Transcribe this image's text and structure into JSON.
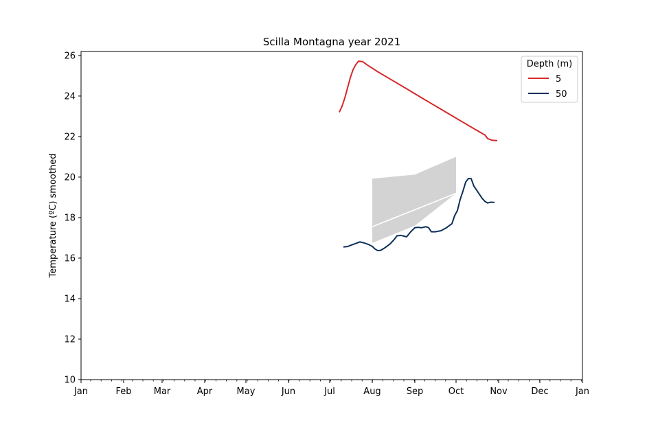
{
  "chart_data": {
    "type": "line",
    "title": "Scilla Montagna year 2021",
    "xlabel": "",
    "ylabel": "Temperature (ºC) smoothed",
    "ylim": [
      10,
      26.2
    ],
    "xlim": [
      "2021-01-01",
      "2022-01-01"
    ],
    "yticks": [
      10,
      12,
      14,
      16,
      18,
      20,
      22,
      24,
      26
    ],
    "xtick_labels": [
      "Jan",
      "Feb",
      "Mar",
      "Apr",
      "May",
      "Jun",
      "Jul",
      "Aug",
      "Sep",
      "Oct",
      "Nov",
      "Dec",
      "Jan"
    ],
    "xtick_dates": [
      "2021-01-01",
      "2021-02-01",
      "2021-03-01",
      "2021-04-01",
      "2021-05-01",
      "2021-06-01",
      "2021-07-01",
      "2021-08-01",
      "2021-09-01",
      "2021-10-01",
      "2021-11-01",
      "2021-12-01",
      "2022-01-01"
    ],
    "grid": false,
    "legend": {
      "title": "Depth (m)",
      "placement": "top-right"
    },
    "series": [
      {
        "name": "5",
        "color": "#d62728",
        "points": [
          [
            "2021-07-08",
            23.2
          ],
          [
            "2021-07-10",
            23.5
          ],
          [
            "2021-07-12",
            23.9
          ],
          [
            "2021-07-14",
            24.4
          ],
          [
            "2021-07-16",
            24.9
          ],
          [
            "2021-07-18",
            25.3
          ],
          [
            "2021-07-20",
            25.55
          ],
          [
            "2021-07-22",
            25.72
          ],
          [
            "2021-07-25",
            25.7
          ],
          [
            "2021-07-28",
            25.55
          ],
          [
            "2021-08-05",
            25.2
          ],
          [
            "2021-08-15",
            24.8
          ],
          [
            "2021-08-25",
            24.4
          ],
          [
            "2021-09-05",
            23.95
          ],
          [
            "2021-09-15",
            23.55
          ],
          [
            "2021-09-25",
            23.15
          ],
          [
            "2021-10-05",
            22.75
          ],
          [
            "2021-10-15",
            22.35
          ],
          [
            "2021-10-22",
            22.08
          ],
          [
            "2021-10-24",
            21.9
          ],
          [
            "2021-10-27",
            21.82
          ],
          [
            "2021-10-31",
            21.8
          ]
        ]
      },
      {
        "name": "50",
        "color": "#0b2f5b",
        "points": [
          [
            "2021-07-11",
            16.55
          ],
          [
            "2021-07-14",
            16.57
          ],
          [
            "2021-07-17",
            16.65
          ],
          [
            "2021-07-20",
            16.72
          ],
          [
            "2021-07-23",
            16.8
          ],
          [
            "2021-07-26",
            16.75
          ],
          [
            "2021-07-29",
            16.68
          ],
          [
            "2021-08-01",
            16.58
          ],
          [
            "2021-08-03",
            16.45
          ],
          [
            "2021-08-05",
            16.37
          ],
          [
            "2021-08-07",
            16.38
          ],
          [
            "2021-08-10",
            16.5
          ],
          [
            "2021-08-14",
            16.7
          ],
          [
            "2021-08-17",
            16.92
          ],
          [
            "2021-08-19",
            17.1
          ],
          [
            "2021-08-22",
            17.12
          ],
          [
            "2021-08-26",
            17.05
          ],
          [
            "2021-08-29",
            17.3
          ],
          [
            "2021-09-01",
            17.5
          ],
          [
            "2021-09-03",
            17.52
          ],
          [
            "2021-09-06",
            17.5
          ],
          [
            "2021-09-09",
            17.55
          ],
          [
            "2021-09-11",
            17.5
          ],
          [
            "2021-09-13",
            17.3
          ],
          [
            "2021-09-16",
            17.3
          ],
          [
            "2021-09-20",
            17.35
          ],
          [
            "2021-09-24",
            17.5
          ],
          [
            "2021-09-28",
            17.7
          ],
          [
            "2021-09-30",
            18.1
          ],
          [
            "2021-10-02",
            18.35
          ],
          [
            "2021-10-04",
            18.9
          ],
          [
            "2021-10-06",
            19.3
          ],
          [
            "2021-10-08",
            19.75
          ],
          [
            "2021-10-10",
            19.93
          ],
          [
            "2021-10-12",
            19.92
          ],
          [
            "2021-10-14",
            19.55
          ],
          [
            "2021-10-16",
            19.35
          ],
          [
            "2021-10-18",
            19.15
          ],
          [
            "2021-10-20",
            18.95
          ],
          [
            "2021-10-22",
            18.8
          ],
          [
            "2021-10-24",
            18.72
          ],
          [
            "2021-10-26",
            18.76
          ],
          [
            "2021-10-29",
            18.75
          ]
        ]
      }
    ],
    "bands": [
      {
        "color": "#d3d3d3",
        "upper": [
          [
            "2021-08-01",
            19.92
          ],
          [
            "2021-09-01",
            20.12
          ],
          [
            "2021-10-01",
            21.0
          ]
        ],
        "lower": [
          [
            "2021-08-01",
            16.75
          ],
          [
            "2021-09-01",
            17.6
          ],
          [
            "2021-10-01",
            19.2
          ]
        ],
        "mean": [
          [
            "2021-08-01",
            17.55
          ],
          [
            "2021-10-01",
            19.2
          ]
        ],
        "mean_color": "#ffffff"
      }
    ]
  }
}
